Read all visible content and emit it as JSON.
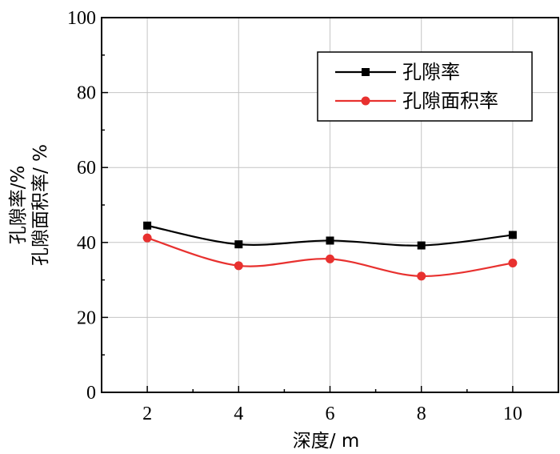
{
  "chart_data": {
    "type": "line",
    "title": "",
    "xlabel": "深度/ m",
    "ylabel_lines": [
      "孔隙率/%",
      "孔隙面积率/ %"
    ],
    "x": [
      2,
      4,
      6,
      8,
      10
    ],
    "xlim": [
      1,
      11
    ],
    "ylim": [
      0,
      100
    ],
    "xticks": [
      2,
      4,
      6,
      8,
      10
    ],
    "yticks": [
      0,
      20,
      40,
      60,
      80,
      100
    ],
    "grid": true,
    "legend_position": "top-right",
    "series": [
      {
        "name": "孔隙率",
        "color": "#000000",
        "marker": "square",
        "values": [
          44.5,
          39.5,
          40.5,
          39.2,
          42.0
        ]
      },
      {
        "name": "孔隙面积率",
        "color": "#e8312f",
        "marker": "circle",
        "values": [
          41.2,
          33.8,
          35.6,
          31.0,
          34.5
        ]
      }
    ]
  }
}
